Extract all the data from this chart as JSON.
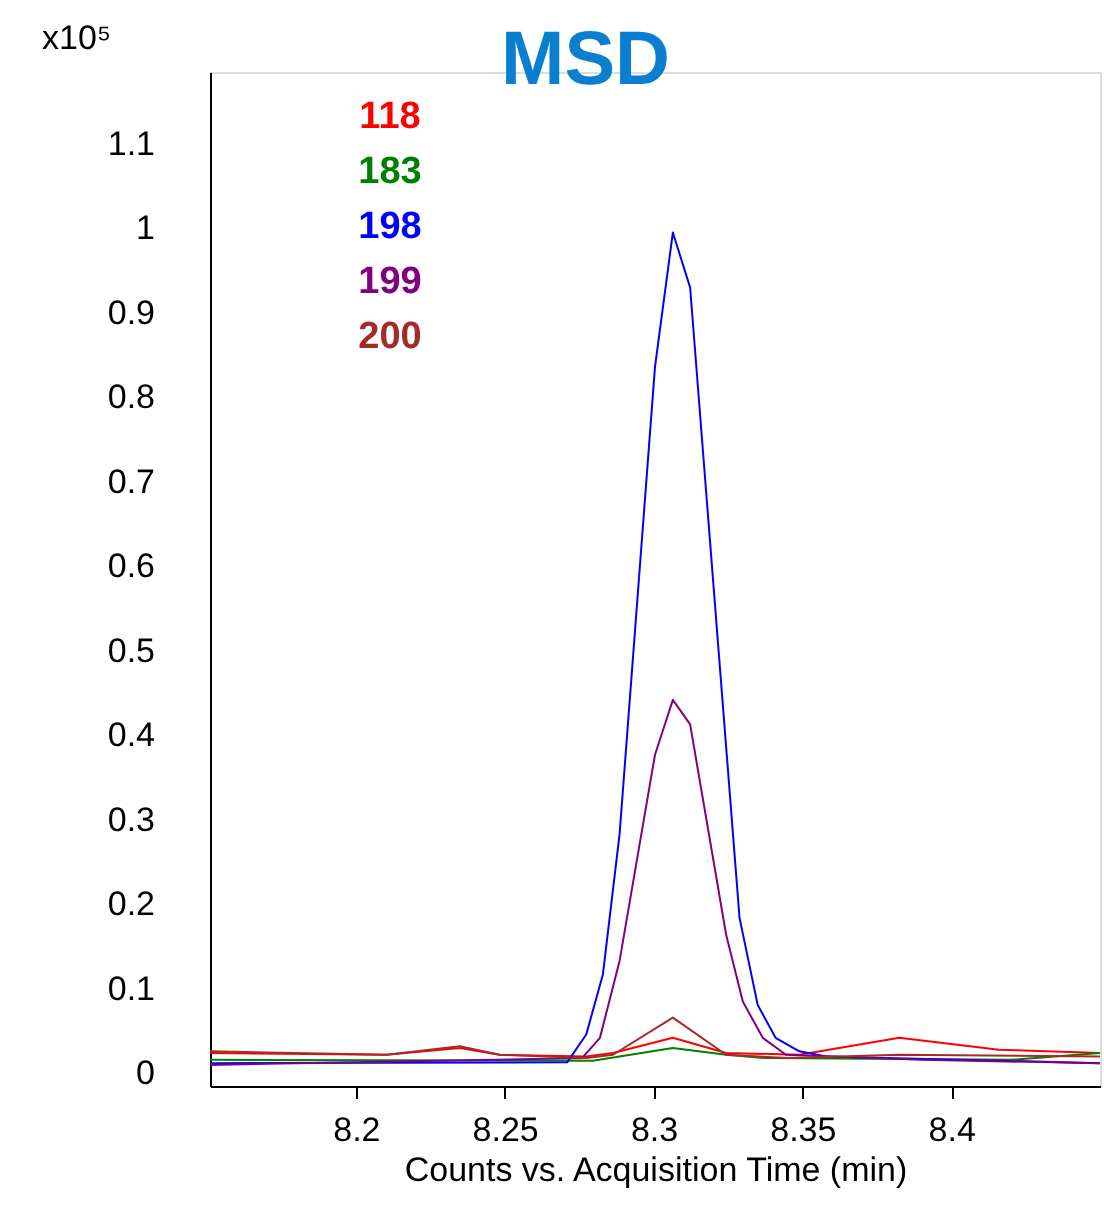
{
  "chart_data": {
    "type": "line",
    "title": "MSD",
    "xlabel": "Counts vs. Acquisition Time (min)",
    "ylabel": "x10⁵",
    "xlim": [
      8.151,
      8.45
    ],
    "ylim": [
      -0.015,
      1.185
    ],
    "xticks": [
      8.2,
      8.25,
      8.3,
      8.35,
      8.4
    ],
    "yticks": [
      0,
      0.1,
      0.2,
      0.3,
      0.4,
      0.5,
      0.6,
      0.7,
      0.8,
      0.9,
      1,
      1.1
    ],
    "grid": false,
    "legend": "top left",
    "marker": "none",
    "line_style": "solid",
    "series": [
      {
        "name": "118",
        "color": "#ff0000",
        "x": [
          8.151,
          8.2103,
          8.2349,
          8.2483,
          8.2774,
          8.2864,
          8.3065,
          8.3244,
          8.349,
          8.3826,
          8.416,
          8.45
        ],
        "values": [
          0.024,
          0.022,
          0.03,
          0.022,
          0.02,
          0.024,
          0.042,
          0.024,
          0.022,
          0.042,
          0.028,
          0.024
        ]
      },
      {
        "name": "183",
        "color": "#008000",
        "x": [
          8.151,
          8.2796,
          8.3065,
          8.3244,
          8.3378,
          8.42,
          8.45
        ],
        "values": [
          0.016,
          0.015,
          0.03,
          0.022,
          0.018,
          0.016,
          0.024
        ]
      },
      {
        "name": "198",
        "color": "#0000ff",
        "x": [
          8.151,
          8.271,
          8.2774,
          8.283,
          8.2886,
          8.3005,
          8.3065,
          8.3123,
          8.3289,
          8.335,
          8.341,
          8.349,
          8.358,
          8.45
        ],
        "values": [
          0.012,
          0.013,
          0.046,
          0.117,
          0.283,
          0.836,
          0.995,
          0.93,
          0.184,
          0.081,
          0.042,
          0.026,
          0.02,
          0.012
        ]
      },
      {
        "name": "199",
        "color": "#800080",
        "x": [
          8.151,
          8.276,
          8.282,
          8.2886,
          8.3005,
          8.3065,
          8.3123,
          8.3244,
          8.33,
          8.3367,
          8.3445,
          8.39,
          8.45
        ],
        "values": [
          0.01,
          0.018,
          0.042,
          0.133,
          0.377,
          0.442,
          0.413,
          0.164,
          0.085,
          0.042,
          0.022,
          0.016,
          0.012
        ]
      },
      {
        "name": "200",
        "color": "#a52a2a",
        "x": [
          8.151,
          8.2103,
          8.2349,
          8.2483,
          8.2774,
          8.2864,
          8.3065,
          8.3244,
          8.345,
          8.3826,
          8.45
        ],
        "values": [
          0.026,
          0.022,
          0.032,
          0.022,
          0.018,
          0.022,
          0.066,
          0.022,
          0.018,
          0.022,
          0.02
        ]
      }
    ]
  }
}
